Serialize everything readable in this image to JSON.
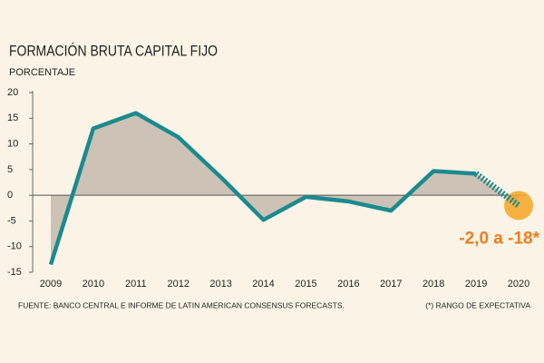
{
  "chart_data": {
    "type": "line",
    "title": "FORMACIÓN BRUTA CAPITAL FIJO",
    "subtitle": "PORCENTAJE",
    "categories": [
      "2009",
      "2010",
      "2011",
      "2012",
      "2013",
      "2014",
      "2015",
      "2016",
      "2017",
      "2018",
      "2019",
      "2020"
    ],
    "series": [
      {
        "name": "Formación bruta capital fijo",
        "color": "#1b8a8f",
        "values": [
          -13.5,
          13,
          16,
          11.3,
          3.5,
          -4.8,
          -0.3,
          -1.2,
          -3,
          4.7,
          4.2,
          -2
        ]
      }
    ],
    "area_color": "#c8bcb0",
    "last_segment_dashed": true,
    "highlight_color": "#f5a623",
    "annotation": "-2,0 a -18*",
    "annotation_color": "#ee7d22",
    "ylim": [
      -15,
      20
    ],
    "yticks": [
      -15,
      -10,
      -5,
      0,
      5,
      10,
      15,
      20
    ],
    "source": "FUENTE: BANCO CENTRAL E INFORME DE LATIN AMERICAN CONSENSUS FORECASTS.",
    "note": "(*) RANGO DE EXPECTATIVA"
  }
}
